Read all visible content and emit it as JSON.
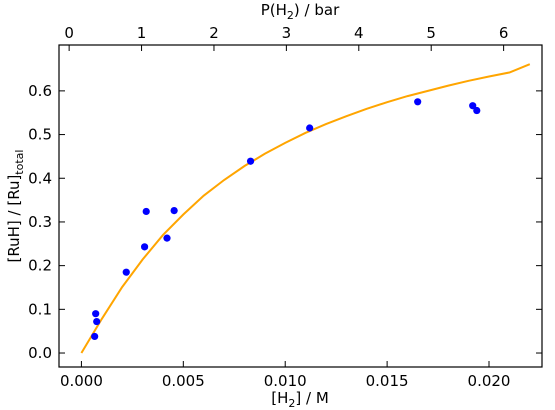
{
  "chart_data": {
    "type": "scatter",
    "xlabel": {
      "main": "[H",
      "sub": "2",
      "tail": "] / M"
    },
    "ylabel": {
      "main": "[RuH] / [Ru]",
      "sub": "total"
    },
    "top_xlabel": {
      "main": "P(H",
      "sub": "2",
      "tail": ") / bar"
    },
    "xlim": [
      -0.0011,
      0.0226
    ],
    "ylim": [
      -0.032,
      0.705
    ],
    "xticks": [
      0.0,
      0.005,
      0.01,
      0.015,
      0.02
    ],
    "xtick_labels": [
      "0.000",
      "0.005",
      "0.010",
      "0.015",
      "0.020"
    ],
    "yticks": [
      0.0,
      0.1,
      0.2,
      0.3,
      0.4,
      0.5,
      0.6
    ],
    "ytick_labels": [
      "0.0",
      "0.1",
      "0.2",
      "0.3",
      "0.4",
      "0.5",
      "0.6"
    ],
    "top_xlim": [
      -0.14,
      6.53
    ],
    "top_xticks": [
      0,
      1,
      2,
      3,
      4,
      5,
      6
    ],
    "top_xtick_labels": [
      "0",
      "1",
      "2",
      "3",
      "4",
      "5",
      "6"
    ],
    "grid": false,
    "series": [
      {
        "kind": "scatter",
        "color": "#0000ff",
        "x": [
          0.00065,
          0.0007,
          0.00075,
          0.0022,
          0.0031,
          0.00318,
          0.0042,
          0.00455,
          0.0083,
          0.0112,
          0.0165,
          0.0192,
          0.0194
        ],
        "y": [
          0.038,
          0.09,
          0.072,
          0.185,
          0.243,
          0.324,
          0.263,
          0.326,
          0.439,
          0.515,
          0.575,
          0.566,
          0.555
        ]
      },
      {
        "kind": "line",
        "color": "#ffa500",
        "x": [
          0.0,
          0.001,
          0.002,
          0.003,
          0.004,
          0.005,
          0.006,
          0.007,
          0.008,
          0.009,
          0.01,
          0.011,
          0.012,
          0.013,
          0.014,
          0.015,
          0.016,
          0.017,
          0.018,
          0.019,
          0.02,
          0.021,
          0.022
        ],
        "y": [
          0.0,
          0.078,
          0.151,
          0.214,
          0.27,
          0.317,
          0.36,
          0.396,
          0.428,
          0.456,
          0.481,
          0.504,
          0.524,
          0.542,
          0.559,
          0.574,
          0.588,
          0.6,
          0.612,
          0.623,
          0.633,
          0.642,
          0.661
        ]
      }
    ]
  }
}
